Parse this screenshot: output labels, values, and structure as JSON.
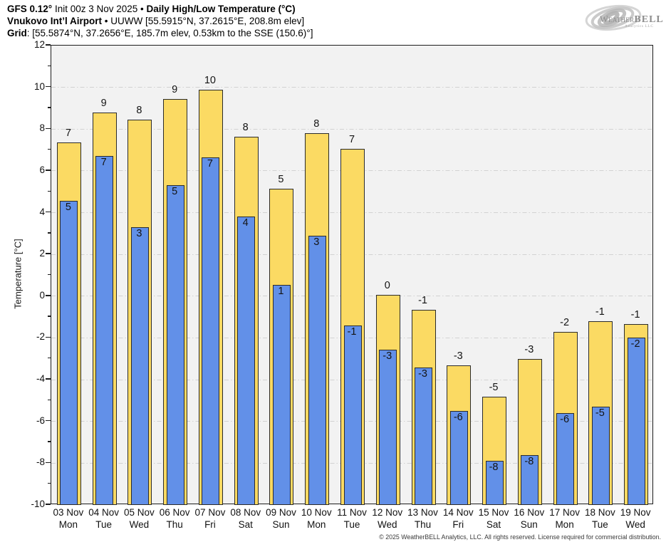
{
  "header": {
    "line1_model": "GFS 0.12°",
    "line1_init": " Init 00z 3 Nov 2025 ",
    "line1_sep": "• ",
    "line1_title": "Daily High/Low Temperature (°C)",
    "line2_station": "Vnukovo Int’l Airport",
    "line2_rest": " • UUWW [55.5915°N, 37.2615°E, 208.8m elev]",
    "line3_label": "Grid",
    "line3_rest": ": [55.5874°N, 37.2656°E, 185.7m elev, 0.53km to the SSE (150.6)°]"
  },
  "logo": {
    "word_main": "Weather",
    "word_bold": "BELL",
    "subtext": "Analytics LLC"
  },
  "footer": {
    "copyright": "© 2025 WeatherBELL Analytics, LLC. All rights reserved. License required for commercial distribution."
  },
  "chart_data": {
    "type": "bar",
    "title": "Daily High/Low Temperature (°C)",
    "ylabel": "Temperature [°C]",
    "ylim": [
      -10,
      12
    ],
    "ytick_step": 2,
    "yticks": [
      12,
      10,
      8,
      6,
      4,
      2,
      0,
      -2,
      -4,
      -6,
      -8,
      -10
    ],
    "grid": true,
    "legend_position": "none",
    "categories": [
      {
        "date": "03 Nov",
        "weekday": "Mon"
      },
      {
        "date": "04 Nov",
        "weekday": "Tue"
      },
      {
        "date": "05 Nov",
        "weekday": "Wed"
      },
      {
        "date": "06 Nov",
        "weekday": "Thu"
      },
      {
        "date": "07 Nov",
        "weekday": "Fri"
      },
      {
        "date": "08 Nov",
        "weekday": "Sat"
      },
      {
        "date": "09 Nov",
        "weekday": "Sun"
      },
      {
        "date": "10 Nov",
        "weekday": "Mon"
      },
      {
        "date": "11 Nov",
        "weekday": "Tue"
      },
      {
        "date": "12 Nov",
        "weekday": "Wed"
      },
      {
        "date": "13 Nov",
        "weekday": "Thu"
      },
      {
        "date": "14 Nov",
        "weekday": "Fri"
      },
      {
        "date": "15 Nov",
        "weekday": "Sat"
      },
      {
        "date": "16 Nov",
        "weekday": "Sun"
      },
      {
        "date": "17 Nov",
        "weekday": "Mon"
      },
      {
        "date": "18 Nov",
        "weekday": "Tue"
      },
      {
        "date": "19 Nov",
        "weekday": "Wed"
      }
    ],
    "series": [
      {
        "name": "Daily High",
        "color": "#fbda63",
        "border_color": "#2b2b2b",
        "values": [
          7.35,
          8.8,
          8.45,
          9.45,
          9.9,
          7.65,
          5.15,
          7.8,
          7.05,
          0.05,
          -0.65,
          -3.3,
          -4.8,
          -3.0,
          -1.7,
          -1.2,
          -1.35
        ],
        "labels": [
          "7",
          "9",
          "8",
          "9",
          "10",
          "8",
          "5",
          "8",
          "7",
          "0",
          "-1",
          "-3",
          "-5",
          "-3",
          "-2",
          "-1",
          "-1"
        ]
      },
      {
        "name": "Daily Low",
        "color": "#6290e8",
        "border_color": "#2b2b2b",
        "values": [
          4.55,
          6.7,
          3.3,
          5.3,
          6.65,
          3.8,
          0.55,
          2.9,
          -1.4,
          -2.55,
          -3.4,
          -5.5,
          -7.9,
          -7.6,
          -5.6,
          -5.3,
          -2.0
        ],
        "labels": [
          "5",
          "7",
          "3",
          "5",
          "7",
          "4",
          "1",
          "3",
          "-1",
          "-3",
          "-3",
          "-6",
          "-8",
          "-8",
          "-6",
          "-5",
          "-2"
        ]
      }
    ],
    "colors": {
      "plot_background": "#f2f2f2",
      "grid": "#d2d2d2",
      "axis": "#1c1c1c",
      "label_text": "#141414"
    }
  }
}
